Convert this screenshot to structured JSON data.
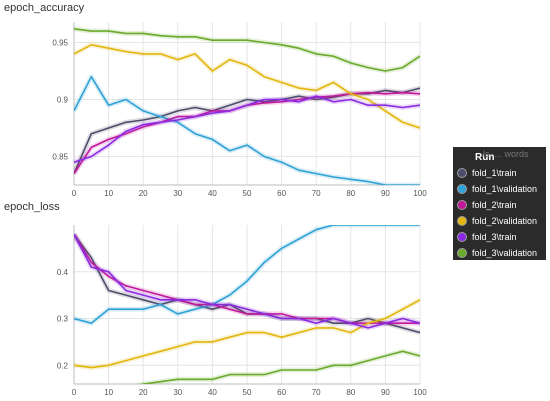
{
  "legend": {
    "header": "Run",
    "faint_text": "ls, ... words",
    "runs": [
      {
        "name": "fold_1\\train",
        "color": "#4d4d6b"
      },
      {
        "name": "fold_1\\validation",
        "color": "#2fa2d6"
      },
      {
        "name": "fold_2\\train",
        "color": "#c2189a"
      },
      {
        "name": "fold_2\\validation",
        "color": "#e2b60e"
      },
      {
        "name": "fold_3\\train",
        "color": "#8a2be2"
      },
      {
        "name": "fold_3\\validation",
        "color": "#6aaa2b"
      }
    ]
  },
  "chart_data": [
    {
      "type": "line",
      "title": "epoch_accuracy",
      "xlabel": "",
      "ylabel": "",
      "xlim": [
        0,
        100
      ],
      "ylim": [
        0.825,
        0.968
      ],
      "xticks": [
        "0",
        "10",
        "20",
        "30",
        "40",
        "50",
        "60",
        "70",
        "80",
        "90",
        "100"
      ],
      "yticks": [
        "0.85",
        "0.9",
        "0.95"
      ],
      "ytick_values": [
        0.85,
        0.9,
        0.95
      ],
      "grid": true,
      "x": [
        0,
        5,
        10,
        15,
        20,
        25,
        30,
        35,
        40,
        45,
        50,
        55,
        60,
        65,
        70,
        75,
        80,
        85,
        90,
        95,
        100
      ],
      "series": [
        {
          "name": "fold_1\\train",
          "color": "#4d4d6b",
          "values": [
            0.835,
            0.87,
            0.875,
            0.88,
            0.882,
            0.885,
            0.89,
            0.893,
            0.89,
            0.895,
            0.9,
            0.898,
            0.9,
            0.903,
            0.9,
            0.902,
            0.905,
            0.905,
            0.908,
            0.906,
            0.91
          ]
        },
        {
          "name": "fold_1\\validation",
          "color": "#2fa2d6",
          "values": [
            0.89,
            0.92,
            0.895,
            0.9,
            0.89,
            0.885,
            0.88,
            0.87,
            0.865,
            0.855,
            0.86,
            0.85,
            0.845,
            0.838,
            0.835,
            0.832,
            0.83,
            0.828,
            0.825,
            0.825,
            0.825
          ]
        },
        {
          "name": "fold_2\\train",
          "color": "#c2189a",
          "values": [
            0.835,
            0.858,
            0.865,
            0.87,
            0.876,
            0.88,
            0.885,
            0.885,
            0.89,
            0.89,
            0.895,
            0.897,
            0.898,
            0.9,
            0.902,
            0.903,
            0.905,
            0.906,
            0.905,
            0.906,
            0.905
          ]
        },
        {
          "name": "fold_2\\validation",
          "color": "#e2b60e",
          "values": [
            0.94,
            0.948,
            0.945,
            0.942,
            0.94,
            0.94,
            0.935,
            0.94,
            0.925,
            0.935,
            0.93,
            0.92,
            0.915,
            0.91,
            0.908,
            0.915,
            0.905,
            0.9,
            0.89,
            0.88,
            0.875
          ]
        },
        {
          "name": "fold_3\\train",
          "color": "#8a2be2",
          "values": [
            0.845,
            0.85,
            0.86,
            0.872,
            0.878,
            0.88,
            0.882,
            0.885,
            0.888,
            0.89,
            0.895,
            0.9,
            0.9,
            0.898,
            0.903,
            0.898,
            0.9,
            0.895,
            0.895,
            0.893,
            0.895
          ]
        },
        {
          "name": "fold_3\\validation",
          "color": "#6aaa2b",
          "values": [
            0.962,
            0.96,
            0.96,
            0.958,
            0.958,
            0.956,
            0.955,
            0.955,
            0.952,
            0.952,
            0.952,
            0.95,
            0.948,
            0.945,
            0.94,
            0.938,
            0.932,
            0.928,
            0.925,
            0.928,
            0.938
          ]
        }
      ]
    },
    {
      "type": "line",
      "title": "epoch_loss",
      "xlabel": "",
      "ylabel": "",
      "xlim": [
        0,
        100
      ],
      "ylim": [
        0.16,
        0.5
      ],
      "xticks": [
        "0",
        "10",
        "20",
        "30",
        "40",
        "50",
        "60",
        "70",
        "80",
        "90",
        "100"
      ],
      "yticks": [
        "0.2",
        "0.3",
        "0.4"
      ],
      "ytick_values": [
        0.2,
        0.3,
        0.4
      ],
      "grid": true,
      "x": [
        0,
        5,
        10,
        15,
        20,
        25,
        30,
        35,
        40,
        45,
        50,
        55,
        60,
        65,
        70,
        75,
        80,
        85,
        90,
        95,
        100
      ],
      "series": [
        {
          "name": "fold_1\\train",
          "color": "#4d4d6b",
          "values": [
            0.48,
            0.43,
            0.36,
            0.35,
            0.34,
            0.33,
            0.34,
            0.33,
            0.32,
            0.33,
            0.31,
            0.31,
            0.3,
            0.3,
            0.3,
            0.29,
            0.29,
            0.3,
            0.29,
            0.28,
            0.27
          ]
        },
        {
          "name": "fold_1\\validation",
          "color": "#2fa2d6",
          "values": [
            0.3,
            0.29,
            0.32,
            0.32,
            0.32,
            0.33,
            0.31,
            0.32,
            0.33,
            0.35,
            0.38,
            0.42,
            0.45,
            0.47,
            0.49,
            0.5,
            0.5,
            0.5,
            0.5,
            0.5,
            0.5
          ]
        },
        {
          "name": "fold_2\\train",
          "color": "#c2189a",
          "values": [
            0.48,
            0.42,
            0.39,
            0.37,
            0.36,
            0.35,
            0.34,
            0.33,
            0.33,
            0.32,
            0.31,
            0.31,
            0.31,
            0.3,
            0.3,
            0.3,
            0.29,
            0.29,
            0.29,
            0.29,
            0.29
          ]
        },
        {
          "name": "fold_2\\validation",
          "color": "#e2b60e",
          "values": [
            0.2,
            0.195,
            0.2,
            0.21,
            0.22,
            0.23,
            0.24,
            0.25,
            0.25,
            0.26,
            0.27,
            0.27,
            0.26,
            0.27,
            0.28,
            0.28,
            0.27,
            0.29,
            0.3,
            0.32,
            0.34
          ]
        },
        {
          "name": "fold_3\\train",
          "color": "#8a2be2",
          "values": [
            0.48,
            0.41,
            0.4,
            0.36,
            0.35,
            0.34,
            0.34,
            0.34,
            0.33,
            0.33,
            0.32,
            0.31,
            0.3,
            0.3,
            0.29,
            0.3,
            0.29,
            0.28,
            0.29,
            0.3,
            0.29
          ]
        },
        {
          "name": "fold_3\\validation",
          "color": "#6aaa2b",
          "values": [
            0.15,
            0.15,
            0.155,
            0.15,
            0.16,
            0.165,
            0.17,
            0.17,
            0.17,
            0.18,
            0.18,
            0.18,
            0.19,
            0.19,
            0.19,
            0.2,
            0.2,
            0.21,
            0.22,
            0.23,
            0.22
          ]
        }
      ]
    }
  ]
}
